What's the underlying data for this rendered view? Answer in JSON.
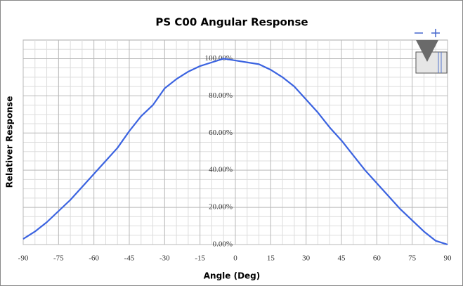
{
  "chart_data": {
    "type": "line",
    "title": "PS C00 Angular Response",
    "x_label": "Angle (Deg)",
    "y_label": "Relativer Response",
    "x": [
      -90,
      -85,
      -80,
      -75,
      -70,
      -65,
      -60,
      -55,
      -50,
      -45,
      -40,
      -35,
      -30,
      -25,
      -20,
      -15,
      -10,
      -5,
      0,
      5,
      10,
      15,
      20,
      25,
      30,
      35,
      40,
      45,
      50,
      55,
      60,
      65,
      70,
      75,
      80,
      85,
      90
    ],
    "series": [
      {
        "name": "PS C00",
        "color": "#3b63e0",
        "values": [
          3,
          7,
          12,
          18,
          24,
          31,
          38,
          45,
          52,
          61,
          69,
          75,
          84,
          89,
          93,
          96,
          98,
          100,
          99,
          98,
          97,
          94,
          90,
          85,
          78,
          71,
          63,
          56,
          48,
          40,
          33,
          26,
          19,
          13,
          7,
          2,
          0
        ]
      }
    ],
    "xlim": [
      -90,
      90
    ],
    "xticks": [
      -90,
      -75,
      -60,
      -45,
      -30,
      -15,
      0,
      15,
      30,
      45,
      60,
      75,
      90
    ],
    "ylim": [
      0,
      110
    ],
    "yticks": [
      {
        "value": 0,
        "label": "0.00%"
      },
      {
        "value": 20,
        "label": "20.00%"
      },
      {
        "value": 40,
        "label": "40.00%"
      },
      {
        "value": 60,
        "label": "60.00%"
      },
      {
        "value": 80,
        "label": "80.00%"
      },
      {
        "value": 100,
        "label": "100.00%"
      }
    ],
    "grid": true
  }
}
